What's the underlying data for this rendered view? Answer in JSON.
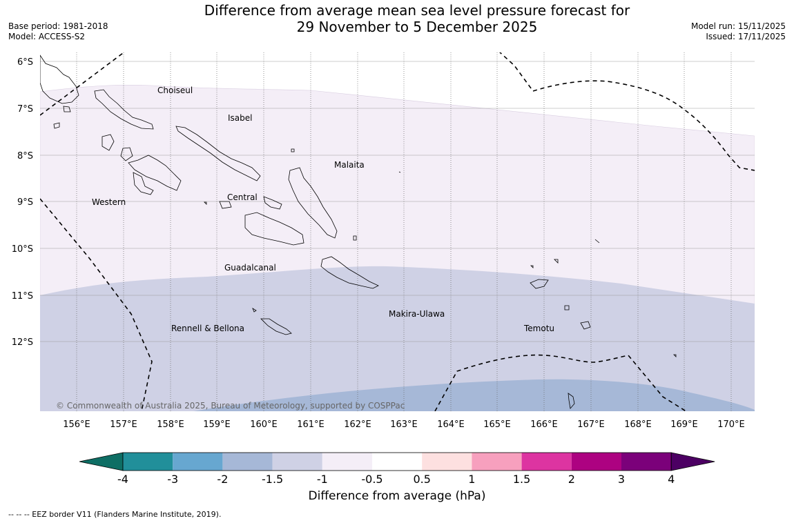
{
  "header": {
    "title_line1": "Difference from average mean sea level pressure forecast for",
    "title_line2": "29 November to 5 December 2025",
    "base_period": "Base period: 1981-2018",
    "model": "Model: ACCESS-S2",
    "model_run": "Model run: 15/11/2025",
    "issued": "Issued: 17/11/2025"
  },
  "map": {
    "lon_labels": [
      "156°E",
      "157°E",
      "158°E",
      "159°E",
      "160°E",
      "161°E",
      "162°E",
      "163°E",
      "164°E",
      "165°E",
      "166°E",
      "167°E",
      "168°E",
      "169°E",
      "170°E"
    ],
    "lat_labels": [
      "6°S",
      "7°S",
      "8°S",
      "9°S",
      "10°S",
      "11°S",
      "12°S"
    ],
    "regions": [
      {
        "name": "Choiseul"
      },
      {
        "name": "Isabel"
      },
      {
        "name": "Malaita"
      },
      {
        "name": "Western"
      },
      {
        "name": "Central"
      },
      {
        "name": "Guadalcanal"
      },
      {
        "name": "Makira-Ulawa"
      },
      {
        "name": "Rennell & Bellona"
      },
      {
        "name": "Temotu"
      }
    ],
    "copyright": "© Commonwealth of Australia 2025, Bureau of Meteorology, supported by COSPPac"
  },
  "colorbar": {
    "tick_labels": [
      "-4",
      "-3",
      "-2",
      "-1.5",
      "-1",
      "-0.5",
      "0.5",
      "1",
      "1.5",
      "2",
      "3",
      "4"
    ],
    "colors": [
      "#0e6e64",
      "#218f9a",
      "#67a7d0",
      "#a6b8d7",
      "#cfd1e5",
      "#f4eef7",
      "#ffffff",
      "#fde0e0",
      "#f7a0be",
      "#dd34a1",
      "#ad0281",
      "#7b017a",
      "#4c0063"
    ],
    "label": "Difference from average (hPa)"
  },
  "footnote": "--  --  -- EEZ border V11 (Flanders Marine Institute, 2019)."
}
